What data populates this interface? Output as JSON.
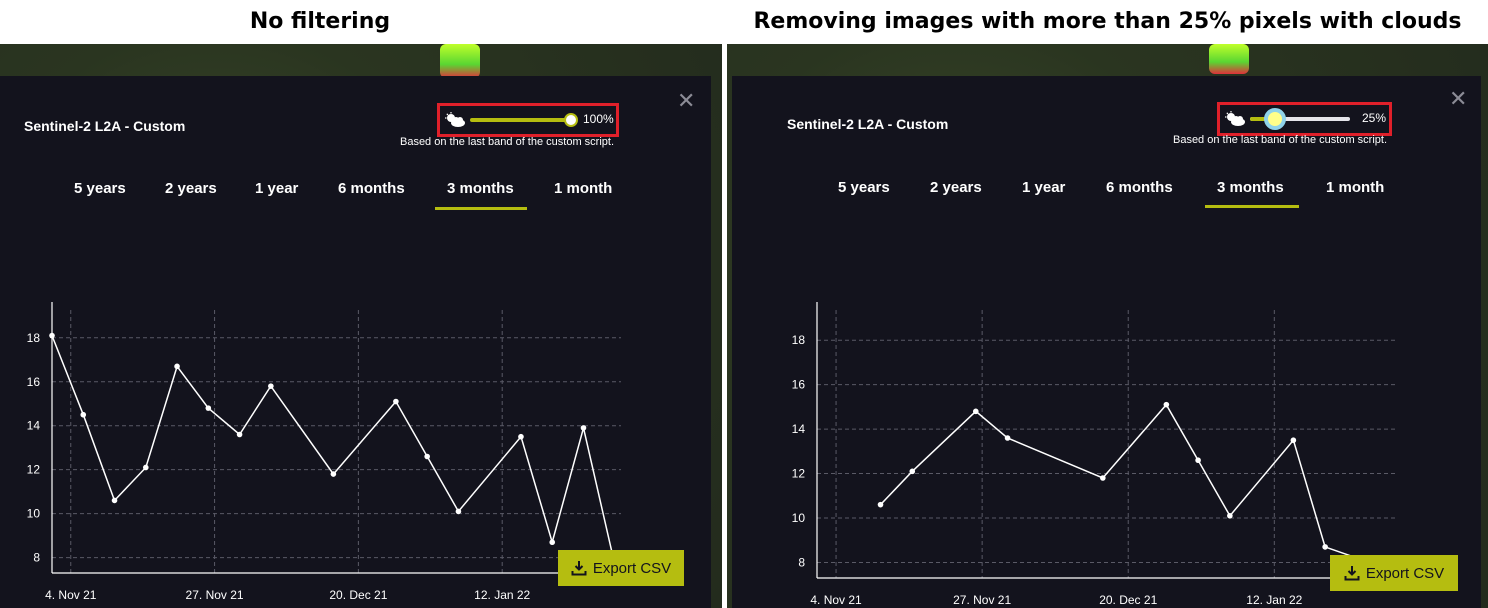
{
  "captions": {
    "left": "No filtering",
    "right": "Removing images with more than 25% pixels with clouds"
  },
  "colors": {
    "panel_bg": "#13131d",
    "accent": "#b5bd10",
    "highlight_box": "#e0202a",
    "knob_left": "#ffffff",
    "knob_right": "#8fd3ea"
  },
  "icons": {
    "close": "close-icon",
    "cloud": "cloud-coverage-icon",
    "export": "download-icon"
  },
  "panels": {
    "left": {
      "title": "Sentinel-2 L2A - Custom",
      "cloud_coverage_percent": 100,
      "cloud_coverage_label": "100%",
      "note": "Based on the last band of the custom script.",
      "tabs": [
        "5 years",
        "2 years",
        "1 year",
        "6 months",
        "3 months",
        "1 month"
      ],
      "active_tab": "3 months",
      "export_label": "Export CSV"
    },
    "right": {
      "title": "Sentinel-2 L2A - Custom",
      "cloud_coverage_percent": 25,
      "cloud_coverage_label": "25%",
      "note": "Based on the last band of the custom script.",
      "tabs": [
        "5 years",
        "2 years",
        "1 year",
        "6 months",
        "3 months",
        "1 month"
      ],
      "active_tab": "3 months",
      "export_label": "Export CSV"
    }
  },
  "chart_data": [
    {
      "type": "line",
      "x_tick_labels": [
        "4. Nov 21",
        "27. Nov 21",
        "20. Dec 21",
        "12. Jan 22"
      ],
      "x_tick_dates": [
        "2021-11-04",
        "2021-11-27",
        "2021-12-20",
        "2022-01-12"
      ],
      "y_ticks": [
        8,
        10,
        12,
        14,
        16,
        18
      ],
      "ylim": [
        7.3,
        18.9
      ],
      "xlim": [
        "2021-11-01",
        "2022-01-31"
      ],
      "grid": true,
      "series": [
        {
          "x": [
            "2021-11-01",
            "2021-11-06",
            "2021-11-11",
            "2021-11-16",
            "2021-11-21",
            "2021-11-26",
            "2021-12-01",
            "2021-12-06",
            "2021-12-16",
            "2021-12-26",
            "2021-12-31",
            "2022-01-05",
            "2022-01-15",
            "2022-01-20",
            "2022-01-25",
            "2022-01-30"
          ],
          "y": [
            18.1,
            14.5,
            10.6,
            12.1,
            16.7,
            14.8,
            13.6,
            15.8,
            11.8,
            15.1,
            12.6,
            10.1,
            13.5,
            8.7,
            13.9,
            7.7
          ]
        }
      ]
    },
    {
      "type": "line",
      "x_tick_labels": [
        "4. Nov 21",
        "27. Nov 21",
        "20. Dec 21",
        "12. Jan 22"
      ],
      "x_tick_dates": [
        "2021-11-04",
        "2021-11-27",
        "2021-12-20",
        "2022-01-12"
      ],
      "y_ticks": [
        8,
        10,
        12,
        14,
        16,
        18
      ],
      "ylim": [
        7.3,
        19.0
      ],
      "xlim": [
        "2021-11-01",
        "2022-01-31"
      ],
      "grid": true,
      "series": [
        {
          "x": [
            "2021-11-11",
            "2021-11-16",
            "2021-11-26",
            "2021-12-01",
            "2021-12-16",
            "2021-12-26",
            "2021-12-31",
            "2022-01-05",
            "2022-01-15",
            "2022-01-20",
            "2022-01-30"
          ],
          "y": [
            10.6,
            12.1,
            14.8,
            13.6,
            11.8,
            15.1,
            12.6,
            10.1,
            13.5,
            8.7,
            7.7
          ]
        }
      ]
    }
  ]
}
